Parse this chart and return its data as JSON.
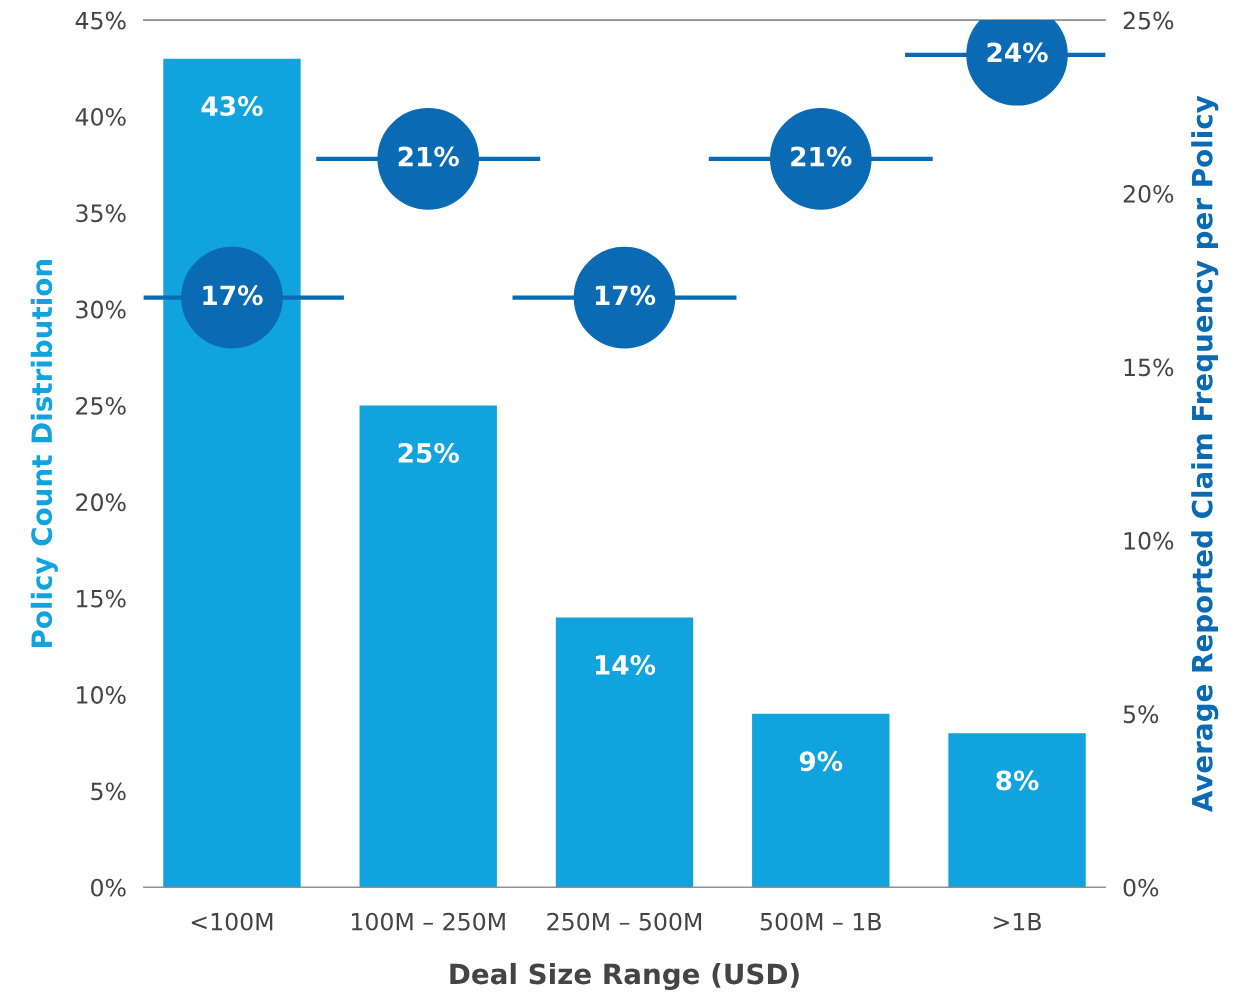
{
  "chart_data": {
    "type": "bar",
    "xlabel": "Deal Size Range (USD)",
    "ylabel": "Policy Count Distribution",
    "y2label": "Average Reported Claim Frequency per Policy",
    "categories": [
      "<100M",
      "100M – 250M",
      "250M – 500M",
      "500M – 1B",
      ">1B"
    ],
    "series": [
      {
        "color": "#11a3dd",
        "values": [
          43,
          25,
          14,
          9,
          8
        ],
        "value_labels": [
          "43%",
          "25%",
          "14%",
          "9%",
          "8%"
        ]
      },
      {
        "type": "scatter",
        "axis": "y2",
        "marker": "circle",
        "color": "#0a6ab4",
        "values": [
          17,
          21,
          17,
          21,
          24
        ],
        "value_labels": [
          "17%",
          "21%",
          "17%",
          "21%",
          "24%"
        ]
      }
    ],
    "ylim": [
      0,
      45
    ],
    "yticks": [
      {
        "value": 0,
        "label": "0%"
      },
      {
        "value": 5,
        "label": "5%"
      },
      {
        "value": 10,
        "label": "10%"
      },
      {
        "value": 15,
        "label": "15%"
      },
      {
        "value": 20,
        "label": "20%"
      },
      {
        "value": 25,
        "label": "25%"
      },
      {
        "value": 30,
        "label": "30%"
      },
      {
        "value": 35,
        "label": "35%"
      },
      {
        "value": 40,
        "label": "40%"
      },
      {
        "value": 45,
        "label": "45%"
      }
    ],
    "y2lim": [
      0,
      25
    ],
    "y2ticks": [
      {
        "value": 0,
        "label": "0%"
      },
      {
        "value": 5,
        "label": "5%"
      },
      {
        "value": 10,
        "label": "10%"
      },
      {
        "value": 15,
        "label": "15%"
      },
      {
        "value": 20,
        "label": "20%"
      },
      {
        "value": 25,
        "label": "25%"
      }
    ],
    "grid": false,
    "legend": false
  }
}
